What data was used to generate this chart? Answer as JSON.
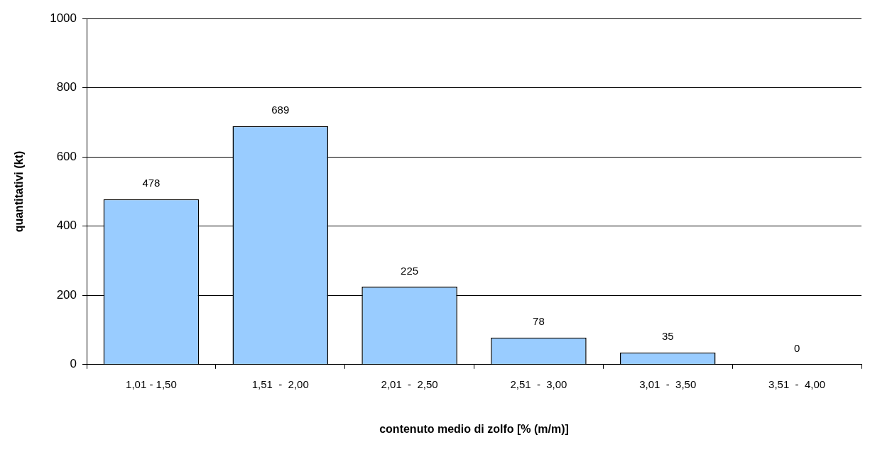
{
  "chart_data": {
    "type": "bar",
    "xlabel": "contenuto medio di zolfo [% (m/m)]",
    "ylabel": "quantitativi (kt)",
    "categories": [
      "1,01 - 1,50",
      "1,51  -  2,00",
      "2,01  -  2,50",
      "2,51  -  3,00",
      "3,01  -  3,50",
      "3,51  -  4,00"
    ],
    "values": [
      478,
      689,
      225,
      78,
      35,
      0
    ],
    "color": "#99ccff",
    "ylim": [
      0,
      1000
    ],
    "yticks": [
      0,
      200,
      400,
      600,
      800,
      1000
    ],
    "grid": "y",
    "data_labels": true,
    "legend": false
  }
}
